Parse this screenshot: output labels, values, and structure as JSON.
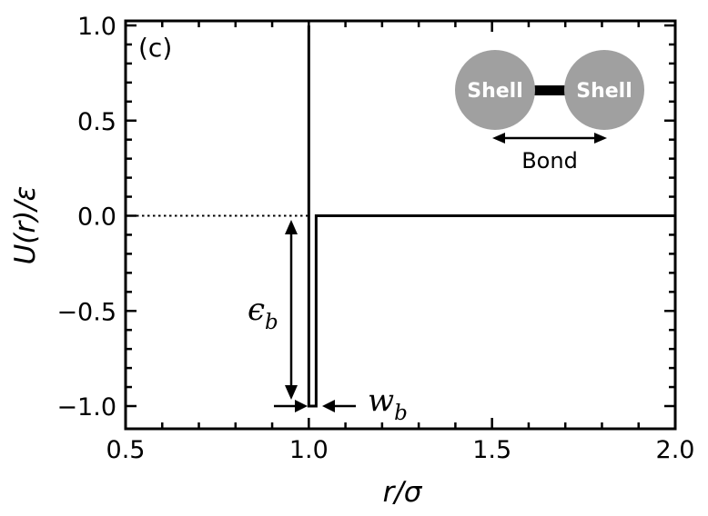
{
  "chart_data": {
    "type": "line",
    "panel_label": "(c)",
    "xlabel": "r/σ",
    "ylabel": "U(r)/ε",
    "xlim": [
      0.5,
      2.0
    ],
    "ylim": [
      -1.1,
      1.0
    ],
    "x_ticks": [
      0.5,
      1.0,
      1.5,
      2.0
    ],
    "x_tick_labels": [
      "0.5",
      "1.0",
      "1.5",
      "2.0"
    ],
    "y_ticks": [
      -1.0,
      -0.5,
      0.0,
      0.5,
      1.0
    ],
    "y_tick_labels": [
      "−1.0",
      "−0.5",
      "0.0",
      "0.5",
      "1.0"
    ],
    "x_minor_step": 0.1,
    "y_minor_step": 0.1,
    "grid": false,
    "series": [
      {
        "style": "solid",
        "color": "#000000",
        "x": [
          1.0,
          1.0,
          1.02,
          1.02,
          2.0
        ],
        "y": [
          1.0,
          -1.0,
          -1.0,
          0.0,
          0.0
        ]
      },
      {
        "style": "dotted",
        "color": "#000000",
        "x": [
          0.5,
          1.0
        ],
        "y": [
          0.0,
          0.0
        ]
      }
    ],
    "annotations": {
      "depth": {
        "symbol": "ϵ",
        "subscript": "b"
      },
      "width": {
        "symbol": "w",
        "subscript": "b"
      }
    },
    "inset": {
      "left_bead": "Shell",
      "right_bead": "Shell",
      "bond_label": "Bond",
      "bead_color": "#a0a0a0"
    }
  }
}
